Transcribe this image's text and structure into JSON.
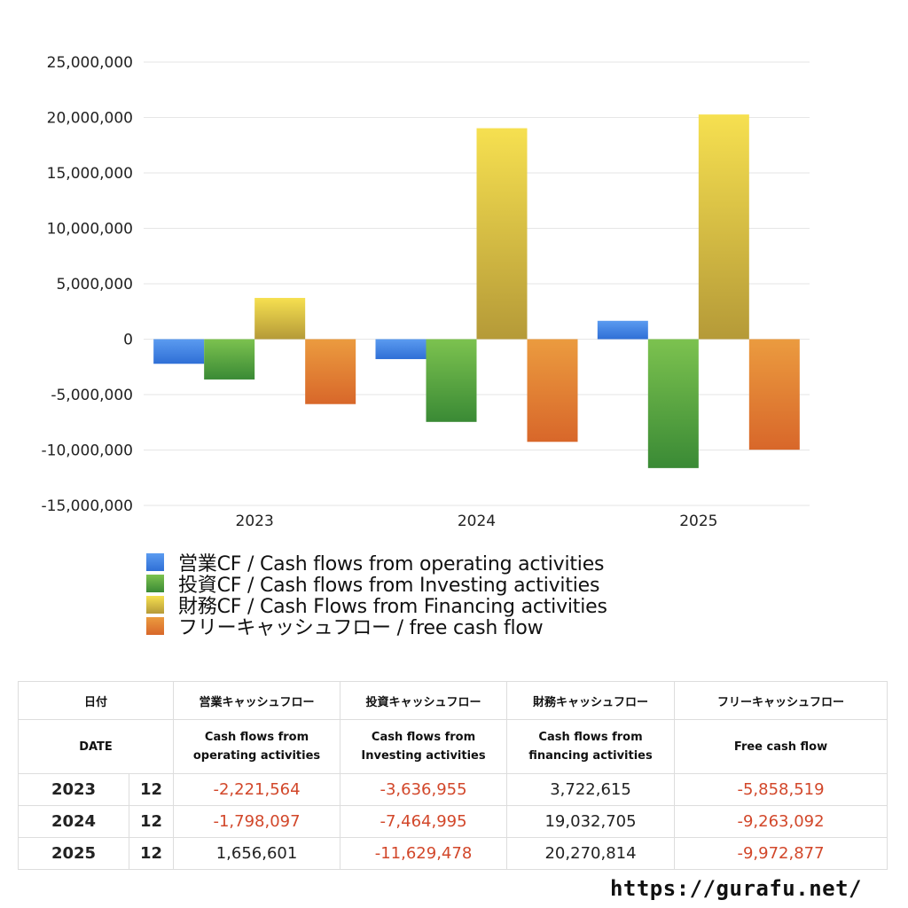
{
  "chart_data": {
    "type": "bar",
    "categories": [
      "2023",
      "2024",
      "2025"
    ],
    "series": [
      {
        "name": "営業CF / Cash flows from operating activities",
        "values": [
          -2221564,
          -1798097,
          1656601
        ],
        "color_top": "#5b9bf0",
        "color_bottom": "#2f6fd6"
      },
      {
        "name": "投資CF / Cash flows from Investing activities",
        "values": [
          -3636955,
          -7464995,
          -11629478
        ],
        "color_top": "#7cc24f",
        "color_bottom": "#3a8a35"
      },
      {
        "name": "財務CF / Cash Flows from Financing activities",
        "values": [
          3722615,
          19032705,
          20270814
        ],
        "color_top": "#f6e050",
        "color_bottom": "#b59a38"
      },
      {
        "name": "フリーキャッシュフロー / free cash flow",
        "values": [
          -5858519,
          -9263092,
          -9972877
        ],
        "color_top": "#eb9b3f",
        "color_bottom": "#d8672a"
      }
    ],
    "ylim": [
      -15000000,
      25000000
    ],
    "yticks": [
      25000000,
      20000000,
      15000000,
      10000000,
      5000000,
      0,
      -5000000,
      -10000000,
      -15000000
    ],
    "ytick_labels": [
      "25,000,000",
      "20,000,000",
      "15,000,000",
      "10,000,000",
      "5,000,000",
      "0",
      "-5,000,000",
      "-10,000,000",
      "-15,000,000"
    ],
    "grid": true,
    "legend_position": "bottom"
  },
  "table": {
    "header_jp": {
      "date": "日付",
      "operating": "営業キャッシュフロー",
      "investing": "投資キャッシュフロー",
      "financing": "財務キャッシュフロー",
      "free": "フリーキャッシュフロー"
    },
    "header_en": {
      "date": "DATE",
      "operating": "Cash flows from operating activities",
      "investing": "Cash flows from Investing activities",
      "financing": "Cash flows from financing activities",
      "free": "Free cash flow"
    },
    "rows": [
      {
        "year": "2023",
        "month": "12",
        "operating": "-2,221,564",
        "investing": "-3,636,955",
        "financing": "3,722,615",
        "free": "-5,858,519"
      },
      {
        "year": "2024",
        "month": "12",
        "operating": "-1,798,097",
        "investing": "-7,464,995",
        "financing": "19,032,705",
        "free": "-9,263,092"
      },
      {
        "year": "2025",
        "month": "12",
        "operating": "1,656,601",
        "investing": "-11,629,478",
        "financing": "20,270,814",
        "free": "-9,972,877"
      }
    ]
  },
  "watermark": "https://gurafu.net/",
  "colors": {
    "negative": "#d2472a",
    "grid": "#e6e6e6"
  }
}
